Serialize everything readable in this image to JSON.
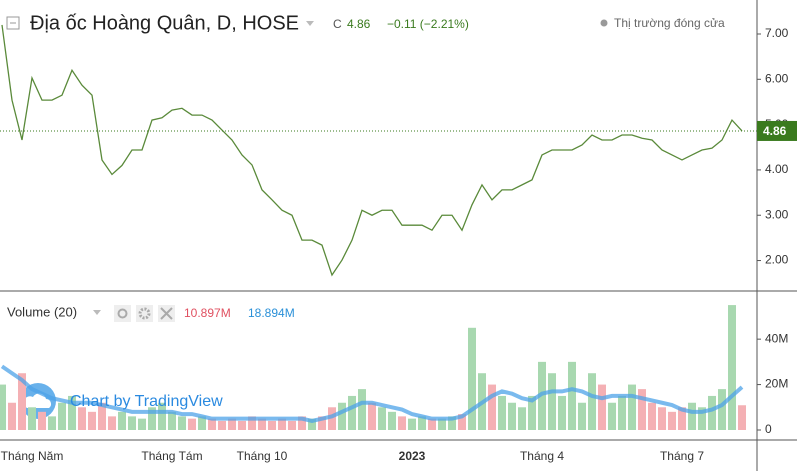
{
  "chart_data": [
    {
      "type": "line",
      "title": "Địa ốc Hoàng Quân, D, HOSE",
      "close_label": "C",
      "close": 4.86,
      "change": "−0.11 (−2.21%)",
      "status": "Thị trường đóng cửa",
      "color": "#5a8a3a",
      "tag_color": "#3a7a1e",
      "ylim": [
        1.35,
        7.75
      ],
      "yticks": [
        {
          "value": 2,
          "label": "2.00"
        },
        {
          "value": 3,
          "label": "3.00"
        },
        {
          "value": 4,
          "label": "4.00"
        },
        {
          "value": 5,
          "label": "5.00"
        },
        {
          "value": 6,
          "label": "6.00"
        },
        {
          "value": 7,
          "label": "7.00"
        }
      ],
      "values": [
        7.2,
        5.54,
        4.66,
        6.03,
        5.54,
        5.54,
        5.65,
        6.2,
        5.87,
        5.65,
        4.22,
        3.9,
        4.1,
        4.44,
        4.44,
        5.1,
        5.15,
        5.32,
        5.36,
        5.21,
        5.21,
        5.1,
        4.88,
        4.66,
        4.33,
        4.11,
        3.56,
        3.34,
        3.11,
        3.0,
        2.45,
        2.45,
        2.34,
        1.68,
        2.01,
        2.45,
        3.11,
        3.0,
        3.11,
        3.11,
        2.78,
        2.78,
        2.78,
        2.67,
        3.0,
        3.0,
        2.67,
        3.23,
        3.67,
        3.34,
        3.56,
        3.56,
        3.67,
        3.78,
        4.33,
        4.44,
        4.44,
        4.44,
        4.55,
        4.77,
        4.66,
        4.66,
        4.77,
        4.77,
        4.7,
        4.66,
        4.44,
        4.33,
        4.22,
        4.33,
        4.44,
        4.48,
        4.66,
        5.1,
        4.86
      ]
    },
    {
      "type": "bar",
      "title": "Volume (20)",
      "watermark": "Chart by TradingView",
      "up_color": "#a8d8b0",
      "down_color": "#f4b0b4",
      "ylim": [
        0,
        59000000.0
      ],
      "yticks": [
        {
          "value": 0,
          "label": "0"
        },
        {
          "value": 20000000.0,
          "label": "20M"
        },
        {
          "value": 40000000.0,
          "label": "40M"
        }
      ],
      "categories": [
        null,
        null,
        null,
        "Tháng Năm",
        null,
        null,
        null,
        null,
        null,
        null,
        null,
        null,
        null,
        null,
        null,
        null,
        null,
        "Tháng Tám",
        null,
        null,
        null,
        null,
        null,
        null,
        null,
        null,
        "Tháng 10",
        null,
        null,
        null,
        null,
        null,
        null,
        null,
        null,
        null,
        null,
        null,
        null,
        null,
        null,
        "2023",
        null,
        null,
        null,
        null,
        null,
        null,
        null,
        null,
        null,
        null,
        null,
        null,
        "Tháng 4",
        null,
        null,
        null,
        null,
        null,
        null,
        null,
        null,
        null,
        null,
        null,
        null,
        null,
        "Tháng 7",
        null,
        null,
        null,
        null,
        null,
        null
      ],
      "series": [
        {
          "name": "Volume",
          "color": "#f08080",
          "last_label": "10.897M",
          "values": [
            20000000.0,
            12000000.0,
            25000000.0,
            10000000.0,
            8000000.0,
            6000000.0,
            12000000.0,
            15000000.0,
            10000000.0,
            8000000.0,
            12000000.0,
            6000000.0,
            8000000.0,
            6000000.0,
            5000000.0,
            10000000.0,
            12000000.0,
            8000000.0,
            6000000.0,
            5000000.0,
            6000000.0,
            5000000.0,
            4000000.0,
            5000000.0,
            4000000.0,
            6000000.0,
            5000000.0,
            4000000.0,
            5000000.0,
            4000000.0,
            6000000.0,
            5000000.0,
            6000000.0,
            10000000.0,
            12000000.0,
            15000000.0,
            18000000.0,
            12000000.0,
            10000000.0,
            8000000.0,
            6000000.0,
            5000000.0,
            6000000.0,
            5000000.0,
            5000000.0,
            6000000.0,
            7000000.0,
            45000000.0,
            25000000.0,
            20000000.0,
            15000000.0,
            12000000.0,
            10000000.0,
            15000000.0,
            30000000.0,
            25000000.0,
            15000000.0,
            30000000.0,
            12000000.0,
            25000000.0,
            20000000.0,
            12000000.0,
            15000000.0,
            20000000.0,
            18000000.0,
            12000000.0,
            10000000.0,
            8000000.0,
            10000000.0,
            12000000.0,
            10000000.0,
            15000000.0,
            18000000.0,
            55000000.0,
            10897000
          ]
        },
        {
          "name": "MA",
          "color": "#4da3e8",
          "last_label": "18.894M",
          "values": [
            28000000.0,
            25000000.0,
            22000000.0,
            18000000.0,
            16000000.0,
            14000000.0,
            13000000.0,
            12000000.0,
            12000000.0,
            12000000.0,
            11000000.0,
            10000000.0,
            9000000.0,
            8000000.0,
            8000000.0,
            8000000.0,
            8000000.0,
            8000000.0,
            7000000.0,
            7000000.0,
            6000000.0,
            5000000.0,
            5000000.0,
            5000000.0,
            5000000.0,
            5000000.0,
            5000000.0,
            5000000.0,
            5000000.0,
            5000000.0,
            5000000.0,
            4000000.0,
            5000000.0,
            6000000.0,
            8000000.0,
            10000000.0,
            12000000.0,
            12000000.0,
            11000000.0,
            10000000.0,
            9000000.0,
            7000000.0,
            6000000.0,
            5000000.0,
            5000000.0,
            5000000.0,
            6000000.0,
            9000000.0,
            12000000.0,
            15000000.0,
            17000000.0,
            16000000.0,
            14000000.0,
            13000000.0,
            16000000.0,
            17000000.0,
            17000000.0,
            18000000.0,
            17000000.0,
            15000000.0,
            14000000.0,
            15000000.0,
            15000000.0,
            15000000.0,
            14000000.0,
            13000000.0,
            12000000.0,
            11000000.0,
            9000000.0,
            8000000.0,
            8000000.0,
            9000000.0,
            11000000.0,
            15000000.0,
            18894000
          ]
        }
      ]
    }
  ]
}
